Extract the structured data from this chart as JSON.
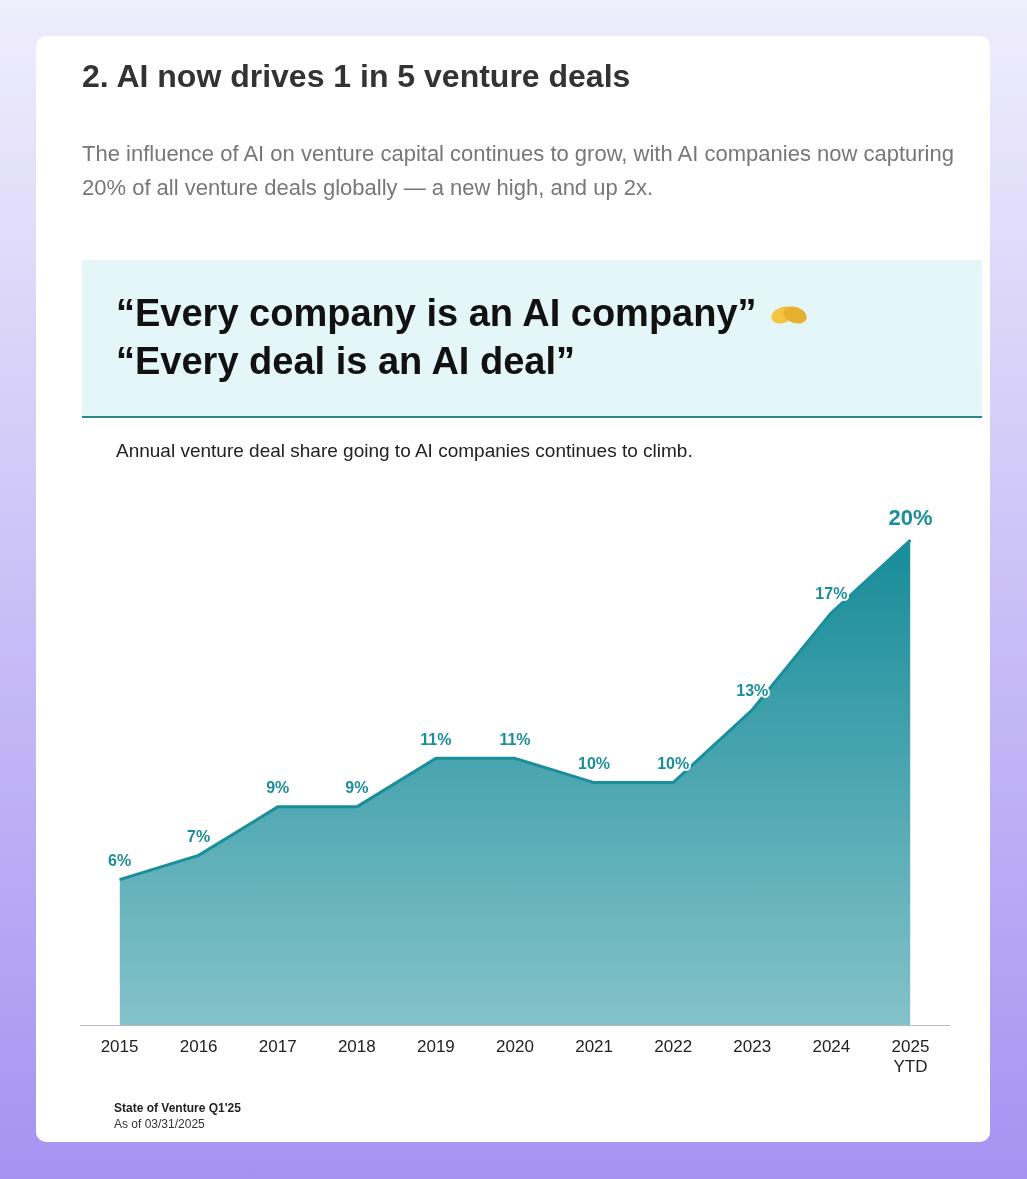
{
  "chart_data": {
    "type": "area",
    "title": "2. AI now drives 1 in 5 venture deals",
    "subtitle": "The influence of AI on venture capital continues to grow, with AI companies now capturing 20% of all venture deals globally — a new high, and up 2x.",
    "annotations": [
      "“Every company is an AI company”",
      "“Every deal is an AI deal”",
      "Annual venture deal share going to AI companies continues to climb.",
      "State of Venture Q1'25",
      "As of 03/31/2025"
    ],
    "categories": [
      "2015",
      "2016",
      "2017",
      "2018",
      "2019",
      "2020",
      "2021",
      "2022",
      "2023",
      "2024",
      "2025 YTD"
    ],
    "series": [
      {
        "color": "#1b8e9b",
        "values": [
          6,
          7,
          9,
          9,
          11,
          11,
          10,
          10,
          13,
          17,
          20
        ],
        "value_labels": [
          "6%",
          "7%",
          "9%",
          "9%",
          "11%",
          "11%",
          "10%",
          "10%",
          "13%",
          "17%",
          "20%"
        ]
      }
    ],
    "tick_labels": "x",
    "legend": false,
    "grid": false
  }
}
